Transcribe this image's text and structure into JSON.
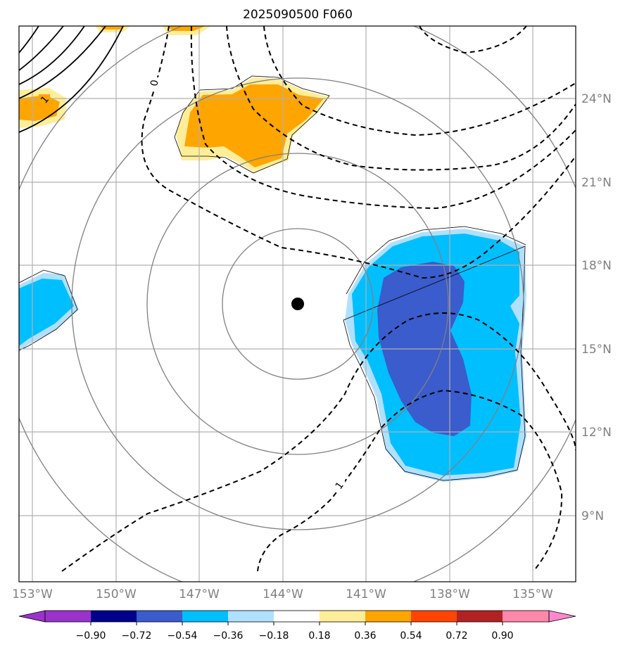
{
  "title": "2025090500 F060",
  "map": {
    "lon_labels": [
      "153°W",
      "150°W",
      "147°W",
      "144°W",
      "141°W",
      "138°W",
      "135°W"
    ],
    "lat_labels": [
      "24°N",
      "21°N",
      "18°N",
      "15°N",
      "12°N",
      "9°N"
    ],
    "contour_labels": [
      "0",
      "1",
      "1"
    ],
    "center_marker": "storm-center",
    "colors": {
      "deep_blue": "#3a5ccc",
      "blue": "#00bfff",
      "light_blue": "#b0e0ff",
      "light_yellow": "#ffee99",
      "orange": "#ffa500"
    }
  },
  "colorbar": {
    "ticks": [
      "−0.90",
      "−0.72",
      "−0.54",
      "−0.36",
      "−0.18",
      "0.18",
      "0.36",
      "0.54",
      "0.72",
      "0.90"
    ],
    "colors": [
      "#9933cc",
      "#00008b",
      "#3a5ccc",
      "#00bfff",
      "#b0e0ff",
      "#ffffff",
      "#ffee99",
      "#ffa500",
      "#ff4500",
      "#b22222",
      "#ff88aa",
      "#ff88cc"
    ]
  }
}
